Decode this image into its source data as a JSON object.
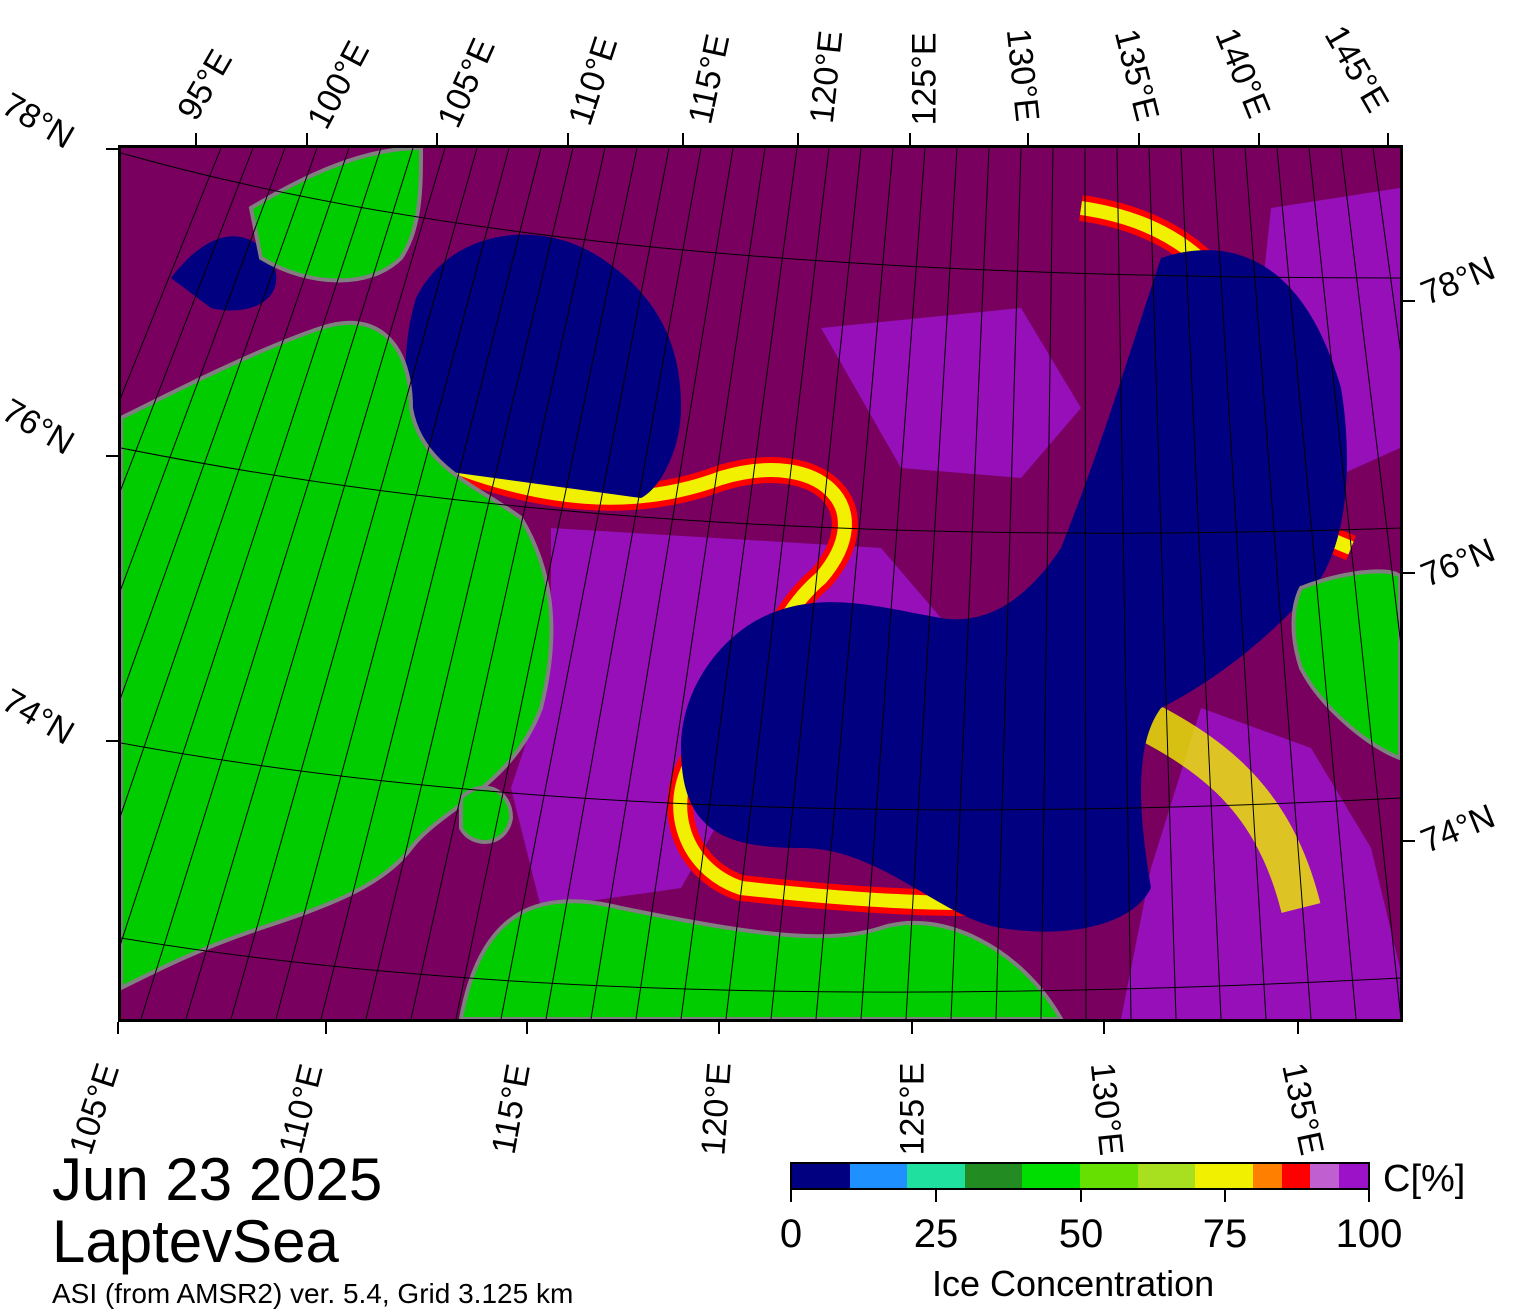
{
  "map": {
    "title_date": "Jun 23 2025",
    "region": "LaptevSea",
    "source": "ASI (from AMSR2) ver. 5.4,  Grid 3.125 km",
    "colors": {
      "land": "#00cc00",
      "land_edge": "#808080",
      "open_water": "#000080",
      "ice_high": "#7a0060",
      "ice_mid": "#9b12c8",
      "ice_edge": "#ff0000"
    }
  },
  "top_lon_labels": [
    "95°E",
    "100°E",
    "105°E",
    "110°E",
    "115°E",
    "120°E",
    "125°E",
    "130°E",
    "135°E",
    "140°E",
    "145°E"
  ],
  "bottom_lon_labels": [
    "105°E",
    "110°E",
    "115°E",
    "120°E",
    "125°E",
    "130°E",
    "135°E"
  ],
  "left_lat_labels": [
    "78°N",
    "76°N",
    "74°N"
  ],
  "right_lat_labels": [
    "78°N",
    "76°N",
    "74°N"
  ],
  "colorbar": {
    "title": "Ice Concentration",
    "unit": "C[%]",
    "tick_labels": [
      "0",
      "25",
      "50",
      "75",
      "100"
    ],
    "colors": [
      "#000080",
      "#1e90ff",
      "#20e0a0",
      "#228b22",
      "#00dd00",
      "#66e000",
      "#a8e020",
      "#f0f000",
      "#ff8000",
      "#ff0000",
      "#c060d0",
      "#9b12c8"
    ],
    "bounds": [
      0,
      10,
      20,
      30,
      40,
      50,
      60,
      70,
      80,
      85,
      90,
      95,
      100
    ]
  }
}
